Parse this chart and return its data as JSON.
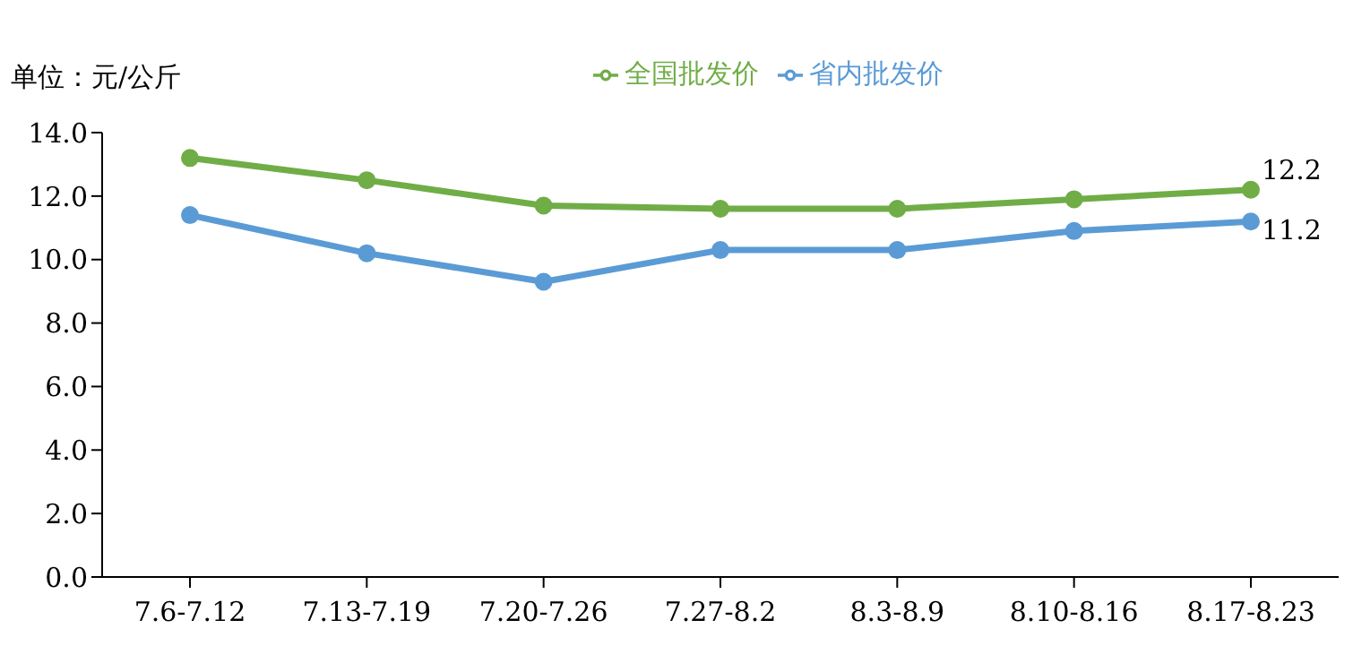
{
  "chart_data": {
    "type": "line",
    "ylabel": "单位：元/公斤",
    "categories": [
      "7.6-7.12",
      "7.13-7.19",
      "7.20-7.26",
      "7.27-8.2",
      "8.3-8.9",
      "8.10-8.16",
      "8.17-8.23"
    ],
    "series": [
      {
        "name": "省内批发价",
        "color": "#5b9bd5",
        "values": [
          11.4,
          10.2,
          9.3,
          10.3,
          10.3,
          10.9,
          11.2
        ],
        "value_labels": [
          null,
          null,
          null,
          null,
          null,
          null,
          "11.2"
        ]
      },
      {
        "name": "全国批发价",
        "color": "#70ad47",
        "values": [
          13.2,
          12.5,
          11.7,
          11.6,
          11.6,
          11.9,
          12.2
        ],
        "value_labels": [
          null,
          null,
          null,
          null,
          null,
          null,
          "12.2"
        ]
      }
    ],
    "ylim": [
      0,
      14
    ],
    "yticks": [
      {
        "value": 0,
        "label": "0.0"
      },
      {
        "value": 2,
        "label": "2.0"
      },
      {
        "value": 4,
        "label": "4.0"
      },
      {
        "value": 6,
        "label": "6.0"
      },
      {
        "value": 8,
        "label": "8.0"
      },
      {
        "value": 10,
        "label": "10.0"
      },
      {
        "value": 12,
        "label": "12.0"
      },
      {
        "value": 14,
        "label": "14.0"
      }
    ],
    "grid": false,
    "legend": "top",
    "marker": "circle",
    "line_style": "solid"
  }
}
